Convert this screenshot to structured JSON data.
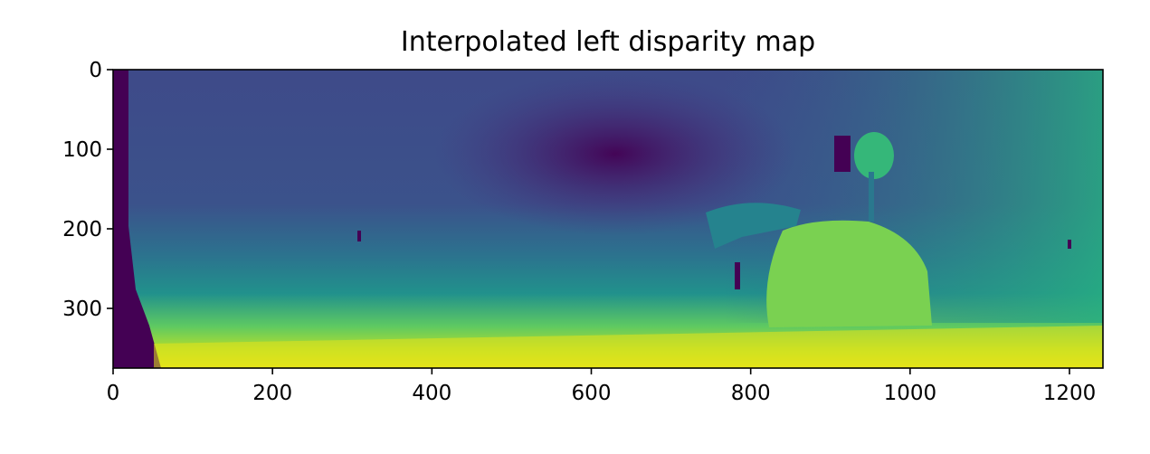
{
  "chart_data": {
    "type": "heatmap",
    "title": "Interpolated left disparity map",
    "xlabel": "",
    "ylabel": "",
    "image_width": 1242,
    "image_height": 375,
    "xlim": [
      0,
      1242
    ],
    "ylim": [
      375,
      0
    ],
    "x_ticks": [
      0,
      200,
      400,
      600,
      800,
      1000,
      1200
    ],
    "y_ticks": [
      0,
      100,
      200,
      300
    ],
    "colormap": "viridis",
    "colormap_stops": [
      "#440154",
      "#3b528b",
      "#21918c",
      "#5ec962",
      "#fde725"
    ],
    "grid": false,
    "legend": "none"
  }
}
